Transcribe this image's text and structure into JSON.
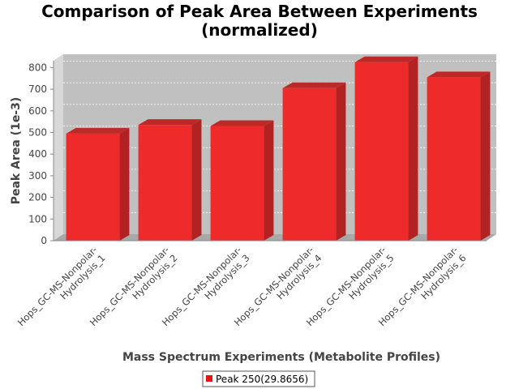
{
  "chart_data": {
    "type": "bar",
    "title": "Comparison of Peak Area Between Experiments (normalized)",
    "title_lines": [
      "Comparison of Peak Area Between Experiments",
      "(normalized)"
    ],
    "xlabel": "Mass Spectrum Experiments (Metabolite Profiles)",
    "ylabel": "Peak Area (1e-3)",
    "categories": [
      [
        "Hops_GC-MS-Nonpolar-",
        "Hydrolysis_1"
      ],
      [
        "Hops_GC-MS-Nonpolar-",
        "Hydrolysis_2"
      ],
      [
        "Hops_GC-MS-Nonpolar-",
        "Hydrolysis_3"
      ],
      [
        "Hops_GC-MS-Nonpolar-",
        "Hydrolysis_4"
      ],
      [
        "Hops_GC-MS-Nonpolar-",
        "Hydrolysis_5"
      ],
      [
        "Hops_GC-MS-Nonpolar-",
        "Hydrolysis_6"
      ]
    ],
    "series": [
      {
        "name": "Peak 250(29.8656)",
        "values": [
          495,
          535,
          530,
          705,
          825,
          755
        ],
        "color": "#ee2222"
      }
    ],
    "ylim": [
      0,
      880
    ],
    "yticks": [
      "0",
      "100",
      "200",
      "300",
      "400",
      "500",
      "600",
      "700",
      "800"
    ],
    "grid": true,
    "legend_position": "bottom",
    "plot_background": "#c0c0c0",
    "bar_color": "#ee2a2a",
    "bar_side_color": "#b32222",
    "bar_top_color": "#c02828"
  }
}
